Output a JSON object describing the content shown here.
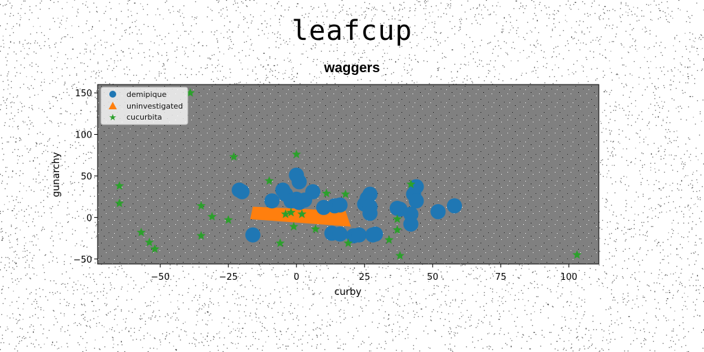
{
  "title": "leafcup",
  "subtitle": "waggers",
  "colors": {
    "background_plot": "#808080",
    "demipique": "#1f77b4",
    "uninvestigated": "#ff7f0e",
    "cucurbita": "#2ca02c"
  },
  "chart_data": {
    "type": "scatter",
    "title": "waggers",
    "xlabel": "curby",
    "ylabel": "gunarchy",
    "xlim": [
      -73,
      111
    ],
    "ylim": [
      -56,
      160
    ],
    "xticks": [
      -50,
      -25,
      0,
      25,
      50,
      75,
      100
    ],
    "yticks": [
      -50,
      0,
      50,
      100,
      150
    ],
    "xtick_labels": [
      "−50",
      "−25",
      "0",
      "25",
      "50",
      "75",
      "100"
    ],
    "ytick_labels": [
      "−50",
      "0",
      "50",
      "100",
      "150"
    ],
    "grid": false,
    "legend_position": "top-left",
    "series": [
      {
        "name": "demipique",
        "marker": "circle",
        "points": [
          [
            -21,
            33
          ],
          [
            -20,
            31
          ],
          [
            -16,
            -21
          ],
          [
            -9,
            20
          ],
          [
            -5,
            33
          ],
          [
            -4,
            28
          ],
          [
            -2,
            20
          ],
          [
            0,
            51
          ],
          [
            1,
            43
          ],
          [
            0,
            22
          ],
          [
            1,
            18
          ],
          [
            3,
            21
          ],
          [
            6,
            31
          ],
          [
            10,
            12
          ],
          [
            14,
            14
          ],
          [
            16,
            15
          ],
          [
            13,
            -19
          ],
          [
            16,
            -20
          ],
          [
            21,
            -22
          ],
          [
            23,
            -21
          ],
          [
            25,
            16
          ],
          [
            26,
            23
          ],
          [
            27,
            28
          ],
          [
            27,
            13
          ],
          [
            27,
            5
          ],
          [
            28,
            -21
          ],
          [
            29,
            -20
          ],
          [
            37,
            11
          ],
          [
            38,
            10
          ],
          [
            42,
            4
          ],
          [
            43,
            28
          ],
          [
            44,
            37
          ],
          [
            44,
            20
          ],
          [
            42,
            -8
          ],
          [
            52,
            7
          ],
          [
            58,
            14
          ]
        ]
      },
      {
        "name": "uninvestigated",
        "marker": "triangle",
        "polygon": [
          [
            -16,
            13
          ],
          [
            18,
            8
          ],
          [
            20,
            -11
          ],
          [
            -17,
            -2
          ]
        ]
      },
      {
        "name": "cucurbita",
        "marker": "star",
        "points": [
          [
            -39,
            150
          ],
          [
            -65,
            38
          ],
          [
            -65,
            17
          ],
          [
            -57,
            -18
          ],
          [
            -54,
            -30
          ],
          [
            -52,
            -38
          ],
          [
            -35,
            14
          ],
          [
            -35,
            -22
          ],
          [
            -31,
            1
          ],
          [
            -25,
            -3
          ],
          [
            -23,
            73
          ],
          [
            -10,
            44
          ],
          [
            -6,
            -31
          ],
          [
            -4,
            4
          ],
          [
            -2,
            6
          ],
          [
            0,
            76
          ],
          [
            2,
            4
          ],
          [
            -1,
            -11
          ],
          [
            7,
            -14
          ],
          [
            11,
            29
          ],
          [
            18,
            28
          ],
          [
            19,
            -31
          ],
          [
            34,
            -27
          ],
          [
            37,
            -15
          ],
          [
            37,
            -2
          ],
          [
            38,
            -46
          ],
          [
            42,
            40
          ],
          [
            103,
            -45
          ]
        ]
      }
    ]
  }
}
